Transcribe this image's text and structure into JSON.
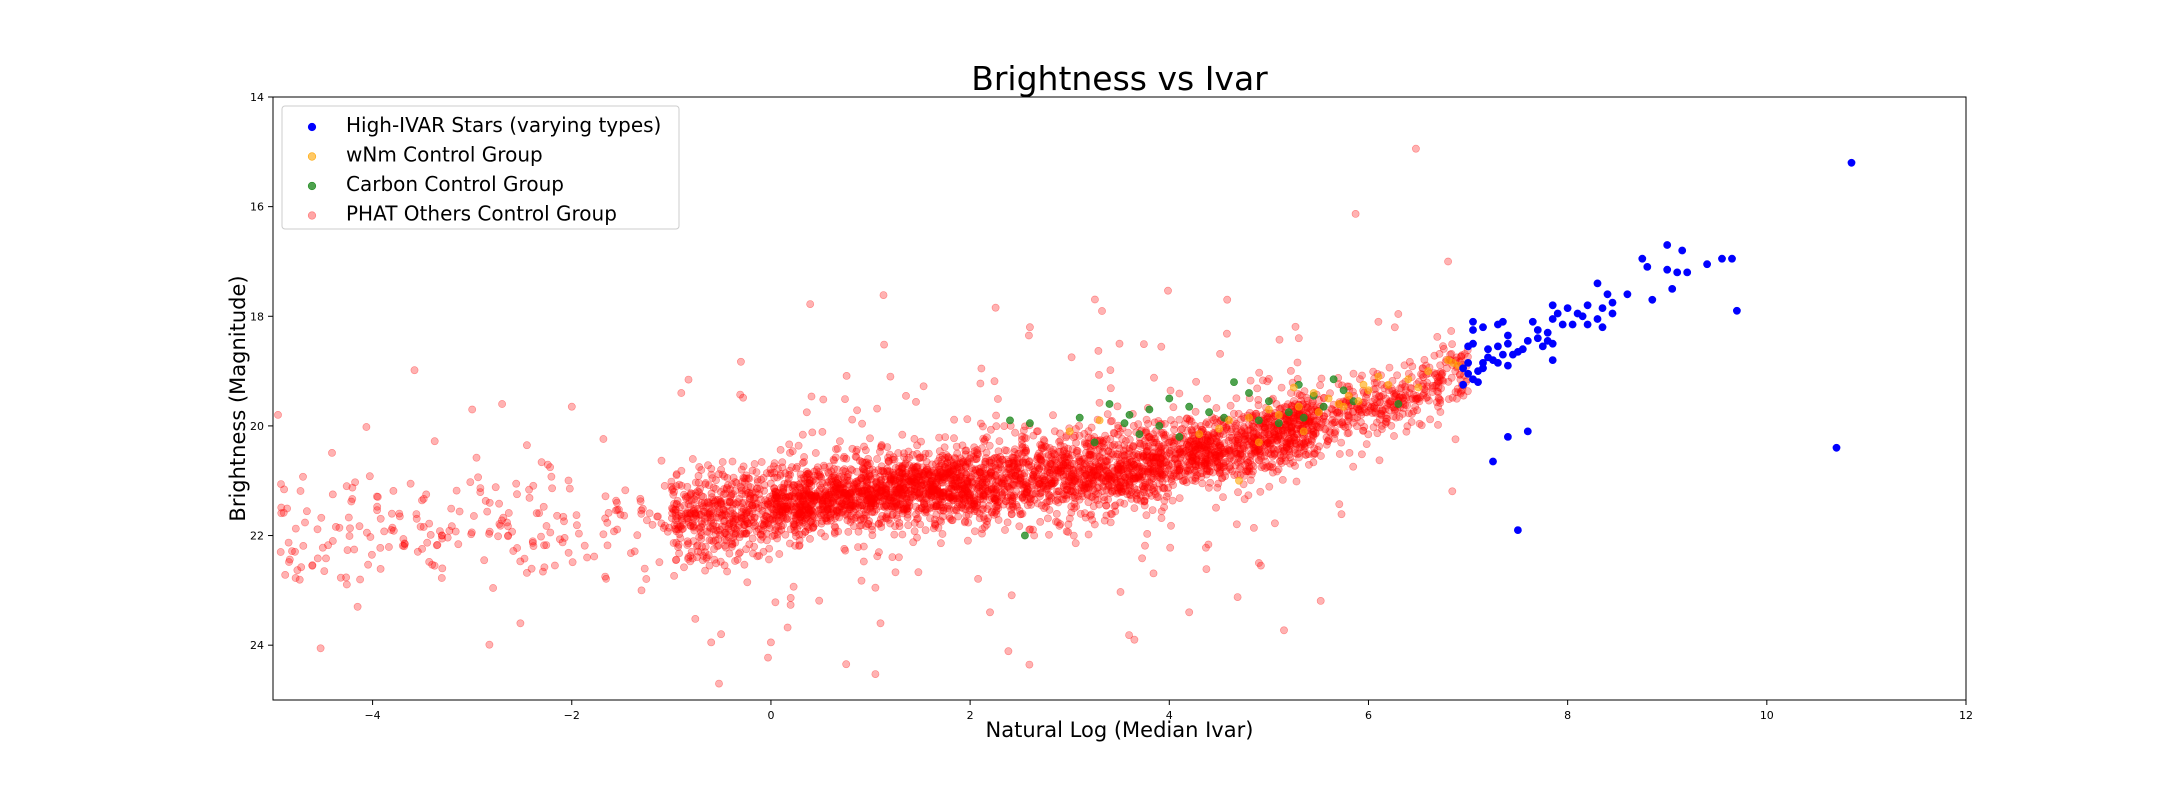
{
  "chart_data": {
    "type": "scatter",
    "title": "Brightness vs Ivar",
    "xlabel": "Natural Log (Median Ivar)",
    "ylabel": "Brightness (Magnitude)",
    "xlim": [
      -5,
      12
    ],
    "ylim": [
      25,
      14
    ],
    "y_inverted": true,
    "x_ticks": [
      -4,
      -2,
      0,
      2,
      4,
      6,
      8,
      10,
      12
    ],
    "x_tick_labels": [
      "−4",
      "−2",
      "0",
      "2",
      "4",
      "6",
      "8",
      "10",
      "12"
    ],
    "y_ticks": [
      14,
      16,
      18,
      20,
      22,
      24
    ],
    "y_tick_labels": [
      "14",
      "16",
      "18",
      "20",
      "22",
      "24"
    ],
    "grid": false,
    "legend_position": "top-left",
    "series": [
      {
        "name": "High-IVAR Stars (varying types)",
        "color": "#0000ff",
        "alpha": 1.0,
        "points": [
          [
            10.85,
            15.2
          ],
          [
            9.0,
            16.7
          ],
          [
            9.15,
            16.8
          ],
          [
            9.55,
            16.95
          ],
          [
            9.65,
            16.95
          ],
          [
            9.4,
            17.05
          ],
          [
            8.75,
            16.95
          ],
          [
            8.8,
            17.1
          ],
          [
            9.0,
            17.15
          ],
          [
            9.1,
            17.2
          ],
          [
            9.2,
            17.2
          ],
          [
            9.05,
            17.5
          ],
          [
            8.3,
            17.4
          ],
          [
            8.4,
            17.6
          ],
          [
            8.6,
            17.6
          ],
          [
            8.85,
            17.7
          ],
          [
            8.45,
            17.75
          ],
          [
            8.2,
            17.8
          ],
          [
            8.35,
            17.85
          ],
          [
            8.45,
            17.95
          ],
          [
            8.1,
            17.95
          ],
          [
            7.85,
            17.8
          ],
          [
            7.9,
            17.95
          ],
          [
            8.0,
            17.85
          ],
          [
            8.15,
            18.0
          ],
          [
            8.3,
            18.05
          ],
          [
            8.05,
            18.15
          ],
          [
            8.2,
            18.15
          ],
          [
            8.35,
            18.2
          ],
          [
            9.7,
            17.9
          ],
          [
            7.65,
            18.1
          ],
          [
            7.7,
            18.25
          ],
          [
            7.8,
            18.3
          ],
          [
            7.7,
            18.4
          ],
          [
            7.6,
            18.45
          ],
          [
            7.8,
            18.45
          ],
          [
            7.75,
            18.55
          ],
          [
            7.85,
            18.5
          ],
          [
            7.95,
            18.15
          ],
          [
            7.85,
            18.05
          ],
          [
            7.55,
            18.6
          ],
          [
            7.85,
            18.8
          ],
          [
            7.35,
            18.1
          ],
          [
            7.3,
            18.15
          ],
          [
            7.15,
            18.2
          ],
          [
            7.05,
            18.1
          ],
          [
            7.05,
            18.25
          ],
          [
            7.4,
            18.35
          ],
          [
            7.4,
            18.5
          ],
          [
            7.3,
            18.55
          ],
          [
            7.2,
            18.6
          ],
          [
            7.5,
            18.65
          ],
          [
            7.45,
            18.7
          ],
          [
            7.35,
            18.7
          ],
          [
            7.25,
            18.8
          ],
          [
            7.15,
            18.85
          ],
          [
            7.05,
            18.5
          ],
          [
            7.0,
            18.55
          ],
          [
            7.2,
            18.75
          ],
          [
            7.3,
            18.85
          ],
          [
            7.4,
            18.9
          ],
          [
            7.0,
            18.85
          ],
          [
            6.95,
            18.95
          ],
          [
            7.1,
            19.0
          ],
          [
            7.0,
            19.05
          ],
          [
            7.05,
            19.15
          ],
          [
            6.95,
            19.25
          ],
          [
            7.1,
            19.2
          ],
          [
            7.15,
            18.95
          ],
          [
            10.7,
            20.4
          ],
          [
            7.6,
            20.1
          ],
          [
            7.4,
            20.2
          ],
          [
            7.25,
            20.65
          ],
          [
            7.5,
            21.9
          ]
        ]
      },
      {
        "name": "wNm Control Group",
        "color": "#ffa500",
        "alpha": 0.6,
        "points": [
          [
            6.8,
            18.8
          ],
          [
            6.85,
            18.85
          ],
          [
            6.6,
            19.0
          ],
          [
            6.9,
            18.9
          ],
          [
            6.4,
            19.15
          ],
          [
            6.2,
            19.25
          ],
          [
            6.0,
            19.35
          ],
          [
            5.8,
            19.45
          ],
          [
            5.9,
            19.55
          ],
          [
            5.7,
            19.6
          ],
          [
            5.6,
            19.5
          ],
          [
            5.5,
            19.75
          ],
          [
            5.3,
            19.65
          ],
          [
            5.1,
            19.8
          ],
          [
            5.0,
            19.7
          ],
          [
            4.8,
            19.85
          ],
          [
            4.6,
            19.9
          ],
          [
            4.5,
            20.05
          ],
          [
            4.3,
            20.15
          ],
          [
            5.45,
            19.4
          ],
          [
            5.95,
            19.25
          ],
          [
            6.1,
            19.1
          ],
          [
            5.25,
            19.3
          ],
          [
            4.9,
            20.3
          ],
          [
            5.35,
            20.1
          ],
          [
            3.3,
            19.9
          ],
          [
            3.0,
            20.1
          ],
          [
            4.7,
            21.0
          ],
          [
            6.5,
            19.3
          ],
          [
            5.75,
            19.65
          ]
        ]
      },
      {
        "name": "Carbon Control Group",
        "color": "#228b22",
        "alpha": 0.8,
        "points": [
          [
            2.4,
            19.9
          ],
          [
            2.6,
            19.95
          ],
          [
            3.1,
            19.85
          ],
          [
            3.4,
            19.6
          ],
          [
            3.6,
            19.8
          ],
          [
            3.8,
            19.7
          ],
          [
            4.0,
            19.5
          ],
          [
            4.2,
            19.65
          ],
          [
            4.4,
            19.75
          ],
          [
            4.65,
            19.2
          ],
          [
            4.8,
            19.4
          ],
          [
            5.0,
            19.55
          ],
          [
            5.2,
            19.75
          ],
          [
            5.3,
            19.25
          ],
          [
            5.45,
            19.45
          ],
          [
            5.55,
            19.65
          ],
          [
            5.65,
            19.15
          ],
          [
            5.75,
            19.35
          ],
          [
            5.85,
            19.55
          ],
          [
            4.55,
            19.85
          ],
          [
            3.9,
            20.0
          ],
          [
            3.7,
            20.15
          ],
          [
            4.1,
            20.2
          ],
          [
            5.1,
            19.95
          ],
          [
            5.35,
            19.85
          ],
          [
            2.55,
            22.0
          ],
          [
            3.25,
            20.3
          ],
          [
            6.3,
            19.6
          ],
          [
            4.9,
            19.9
          ],
          [
            3.55,
            19.95
          ]
        ]
      },
      {
        "name": "PHAT Others Control Group",
        "color": "#ff0000",
        "alpha": 0.3,
        "generator": {
          "trend": [
            [
              -5,
              21.9
            ],
            [
              -1,
              21.75
            ],
            [
              1,
              21.2
            ],
            [
              3,
              20.9
            ],
            [
              4,
              20.65
            ],
            [
              5,
              20.2
            ],
            [
              6,
              19.7
            ],
            [
              7,
              19.0
            ]
          ],
          "segments": [
            {
              "x": [
                -4.95,
                -1.0
              ],
              "n": 230,
              "spread": 0.55
            },
            {
              "x": [
                -1.0,
                0.0
              ],
              "n": 480,
              "spread": 0.42
            },
            {
              "x": [
                0.0,
                2.0
              ],
              "n": 1500,
              "spread": 0.32
            },
            {
              "x": [
                2.0,
                4.0
              ],
              "n": 1250,
              "spread": 0.38
            },
            {
              "x": [
                4.0,
                5.5
              ],
              "n": 900,
              "spread": 0.32
            },
            {
              "x": [
                5.5,
                7.0
              ],
              "n": 380,
              "spread": 0.32
            }
          ],
          "outlier_fraction": 0.06,
          "outlier_spread": 1.3,
          "seed": 7
        },
        "extra_points": [
          [
            -4.95,
            19.8
          ],
          [
            -4.4,
            21.25
          ],
          [
            -4.4,
            22.1
          ],
          [
            -4.15,
            23.3
          ],
          [
            -3.0,
            19.7
          ],
          [
            -2.7,
            19.6
          ],
          [
            -2.0,
            19.65
          ],
          [
            -0.9,
            19.4
          ],
          [
            -0.5,
            23.8
          ],
          [
            0.0,
            23.95
          ],
          [
            1.2,
            19.1
          ],
          [
            2.6,
            18.2
          ],
          [
            3.5,
            18.5
          ],
          [
            6.8,
            17.0
          ],
          [
            4.9,
            22.5
          ],
          [
            3.65,
            23.9
          ],
          [
            1.1,
            23.6
          ],
          [
            -0.6,
            23.95
          ],
          [
            5.3,
            18.4
          ],
          [
            6.1,
            18.1
          ],
          [
            2.2,
            23.4
          ],
          [
            4.2,
            23.4
          ],
          [
            -1.3,
            23.0
          ],
          [
            -3.3,
            22.6
          ]
        ]
      }
    ]
  }
}
